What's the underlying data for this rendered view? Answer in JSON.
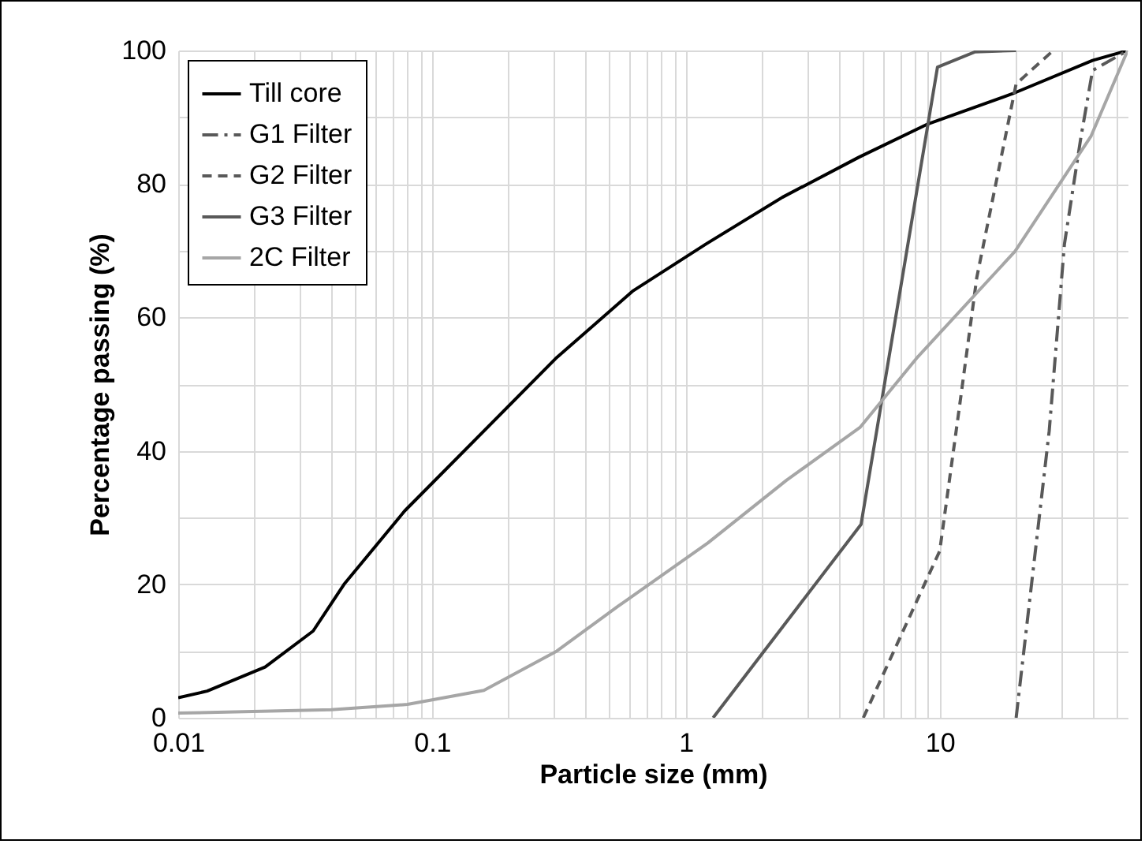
{
  "chart_data": {
    "type": "line",
    "xlabel": "Particle size (mm)",
    "ylabel": "Percentage passing (%)",
    "log": "x",
    "grid": true,
    "legend": "top left",
    "marker": "none",
    "xlim": [
      0.01,
      55
    ],
    "ylim": [
      0,
      100
    ],
    "xticks": [
      0.01,
      {
        "value": 0.02,
        "label": null
      },
      {
        "value": 0.03,
        "label": null
      },
      {
        "value": 0.04,
        "label": null
      },
      {
        "value": 0.05,
        "label": null
      },
      {
        "value": 0.06,
        "label": null
      },
      {
        "value": 0.07,
        "label": null
      },
      {
        "value": 0.08,
        "label": null
      },
      {
        "value": 0.09,
        "label": null
      },
      0.1,
      {
        "value": 0.2,
        "label": null
      },
      {
        "value": 0.3,
        "label": null
      },
      {
        "value": 0.4,
        "label": null
      },
      {
        "value": 0.5,
        "label": null
      },
      {
        "value": 0.6,
        "label": null
      },
      {
        "value": 0.7,
        "label": null
      },
      {
        "value": 0.8,
        "label": null
      },
      {
        "value": 0.9,
        "label": null
      },
      1,
      {
        "value": 2,
        "label": null
      },
      {
        "value": 3,
        "label": null
      },
      {
        "value": 4,
        "label": null
      },
      {
        "value": 5,
        "label": null
      },
      {
        "value": 6,
        "label": null
      },
      {
        "value": 7,
        "label": null
      },
      {
        "value": 8,
        "label": null
      },
      {
        "value": 9,
        "label": null
      },
      10,
      {
        "value": 20,
        "label": null
      },
      {
        "value": 30,
        "label": null
      },
      {
        "value": 40,
        "label": null
      },
      {
        "value": 50,
        "label": null
      }
    ],
    "yticks": [
      0,
      {
        "value": 10,
        "label": null
      },
      20,
      {
        "value": 30,
        "label": null
      },
      40,
      {
        "value": 50,
        "label": null
      },
      60,
      {
        "value": 70,
        "label": null
      },
      80,
      {
        "value": 90,
        "label": null
      },
      100
    ],
    "series": [
      {
        "name": "Till core",
        "color": "#000000",
        "line_style": "solid",
        "x": [
          0.01,
          0.013,
          0.022,
          0.034,
          0.045,
          0.078,
          0.31,
          0.62,
          1.2,
          2.4,
          4.8,
          9,
          19.3,
          40,
          55
        ],
        "values": [
          3,
          4,
          7.6,
          13,
          20,
          31,
          54,
          64,
          71,
          78,
          84,
          89,
          93.5,
          98.5,
          100
        ]
      },
      {
        "name": "G1 Filter",
        "color": "#595959",
        "line_style": "dashdot",
        "x": [
          20,
          27,
          31,
          36,
          40,
          55
        ],
        "values": [
          0,
          43,
          71,
          87,
          97,
          100
        ]
      },
      {
        "name": "G2 Filter",
        "color": "#595959",
        "line_style": "dashed",
        "x": [
          5,
          10,
          12,
          14,
          20,
          28
        ],
        "values": [
          0,
          25,
          47,
          66,
          95,
          100
        ]
      },
      {
        "name": "G3 Filter",
        "color": "#595959",
        "line_style": "solid",
        "x": [
          1.28,
          4.9,
          9.8,
          13.8,
          20
        ],
        "values": [
          0,
          29,
          97.5,
          99.8,
          100
        ]
      },
      {
        "name": "2C Filter",
        "color": "#a6a6a6",
        "line_style": "solid",
        "x": [
          0.01,
          0.04,
          0.08,
          0.16,
          0.31,
          0.54,
          1.22,
          2.49,
          4.85,
          8.2,
          19.8,
          39.5,
          55
        ],
        "values": [
          0.7,
          1.2,
          2,
          4.1,
          10,
          16.7,
          26.2,
          35.6,
          43.5,
          54.1,
          69.9,
          87.2,
          100
        ]
      }
    ]
  }
}
